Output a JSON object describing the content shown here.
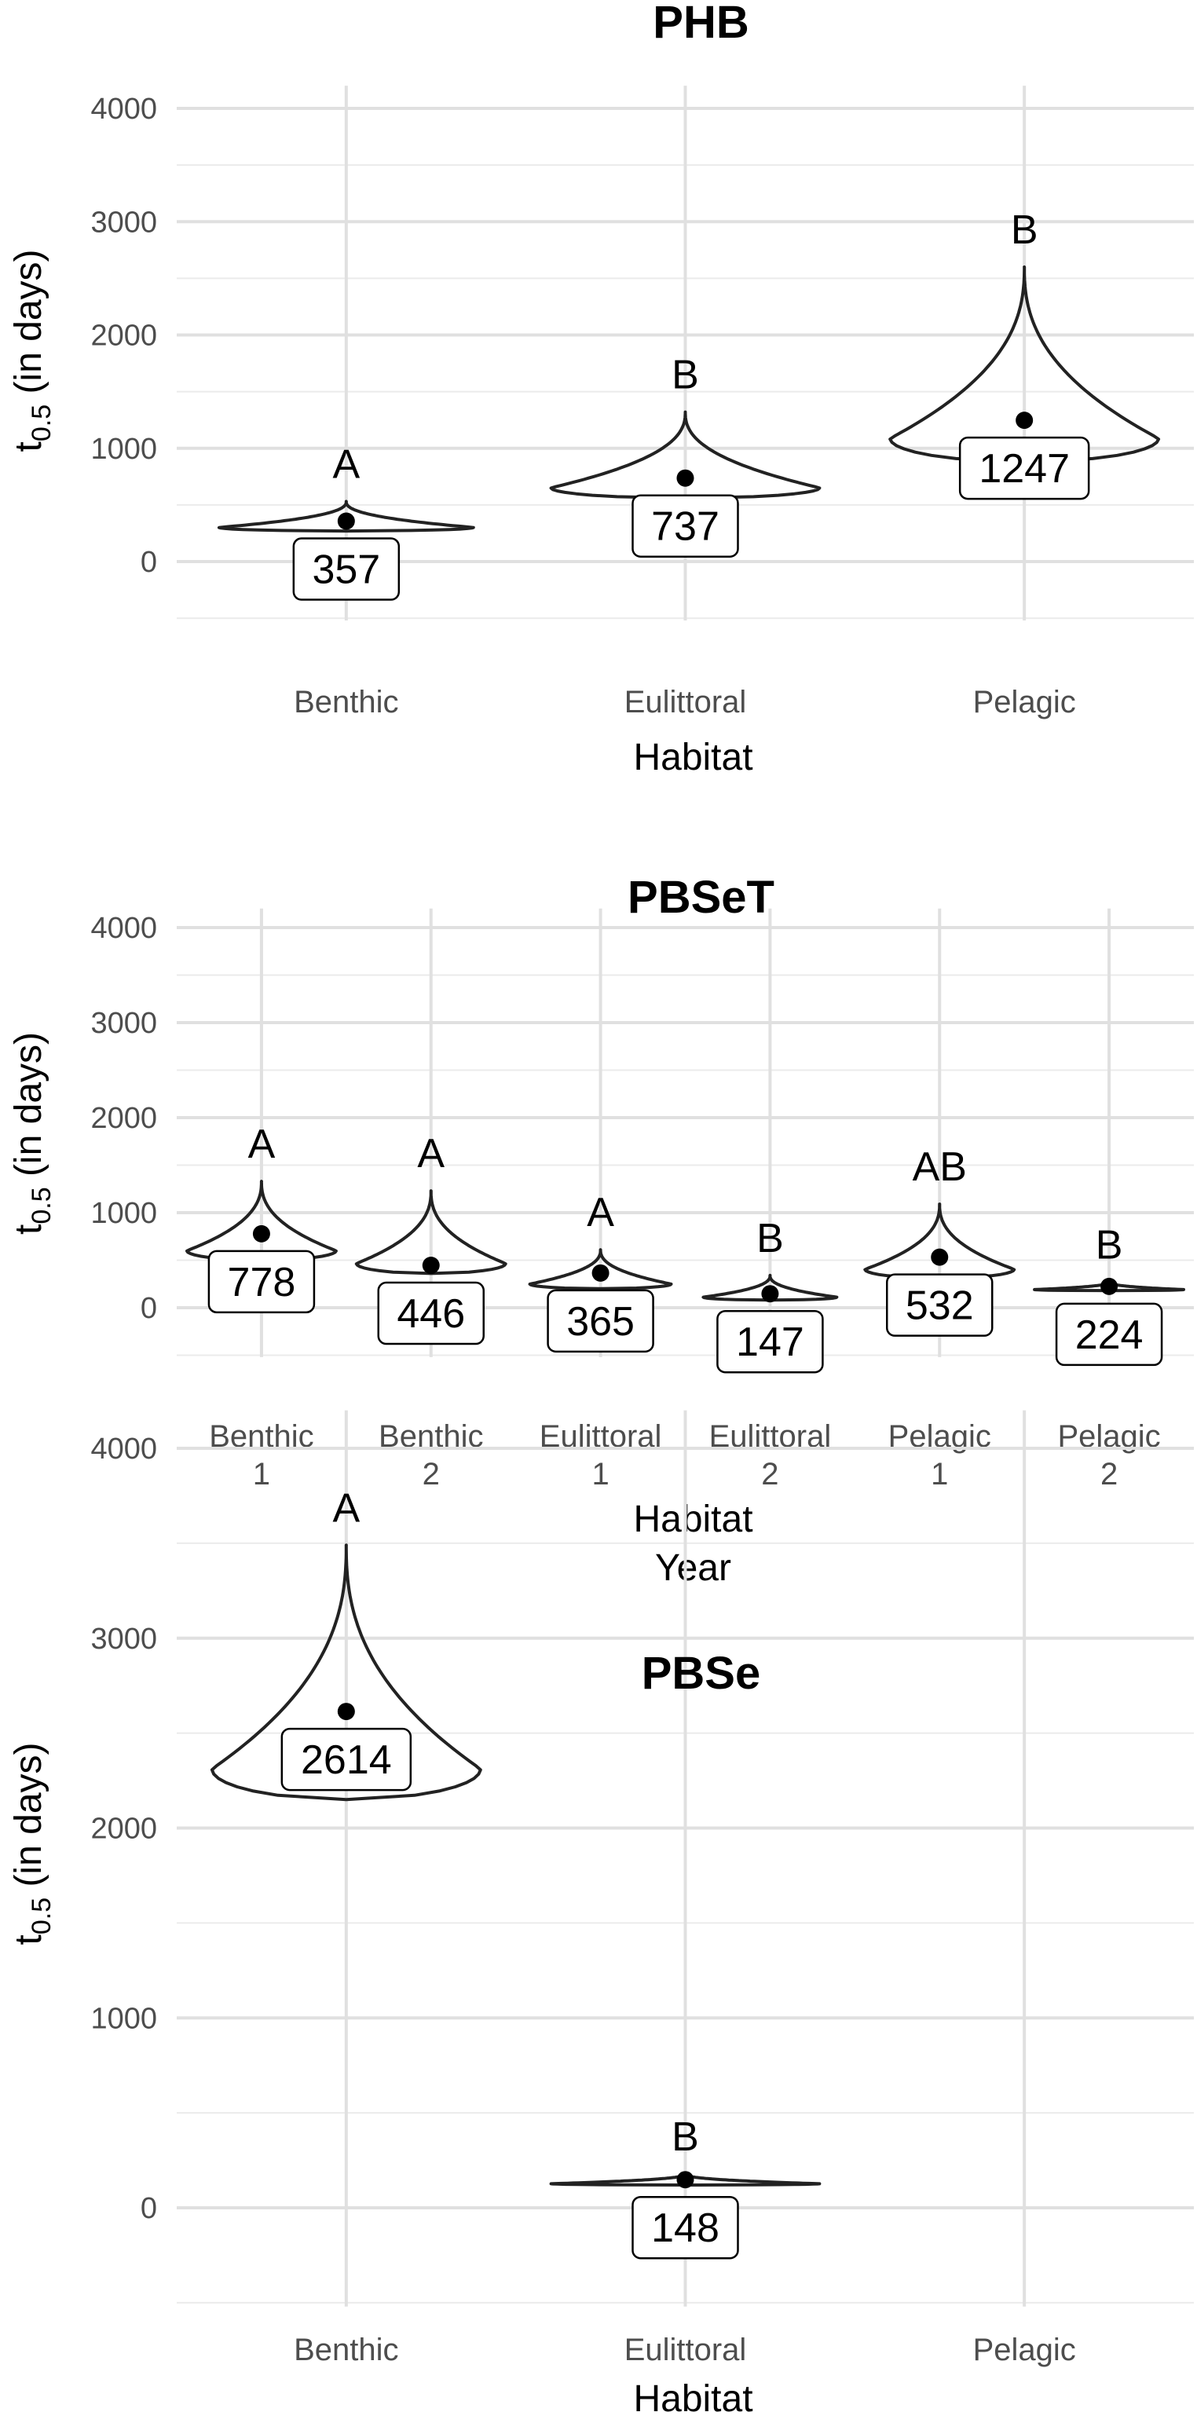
{
  "chart_data": [
    {
      "type": "violin",
      "title": "PHB",
      "xlabel": [
        "Habitat"
      ],
      "ylabel": "t0.5 (in days)",
      "ylim": [
        -520,
        4200
      ],
      "yticks": [
        0,
        1000,
        2000,
        3000,
        4000
      ],
      "categories": [
        {
          "label": [
            "Benthic"
          ],
          "value": 357,
          "letter": "A",
          "vmin": 270,
          "vmax": 530,
          "spread": 0.9
        },
        {
          "label": [
            "Eulittoral"
          ],
          "value": 737,
          "letter": "B",
          "vmin": 560,
          "vmax": 1320,
          "spread": 0.95
        },
        {
          "label": [
            "Pelagic"
          ],
          "value": 1247,
          "letter": "B",
          "vmin": 880,
          "vmax": 2600,
          "spread": 0.95
        }
      ]
    },
    {
      "type": "violin",
      "title": "PBSeT",
      "xlabel": [
        "Habitat",
        "Year"
      ],
      "ylabel": "t0.5 (in days)",
      "ylim": [
        -520,
        4200
      ],
      "yticks": [
        0,
        1000,
        2000,
        3000,
        4000
      ],
      "categories": [
        {
          "label": [
            "Benthic",
            "1"
          ],
          "value": 778,
          "letter": "A",
          "vmin": 500,
          "vmax": 1330,
          "spread": 0.95
        },
        {
          "label": [
            "Benthic",
            "2"
          ],
          "value": 446,
          "letter": "A",
          "vmin": 360,
          "vmax": 1230,
          "spread": 0.95
        },
        {
          "label": [
            "Eulittoral",
            "1"
          ],
          "value": 365,
          "letter": "A",
          "vmin": 200,
          "vmax": 610,
          "spread": 0.9
        },
        {
          "label": [
            "Eulittoral",
            "2"
          ],
          "value": 147,
          "letter": "B",
          "vmin": 80,
          "vmax": 340,
          "spread": 0.85
        },
        {
          "label": [
            "Pelagic",
            "1"
          ],
          "value": 532,
          "letter": "AB",
          "vmin": 310,
          "vmax": 1090,
          "spread": 0.95
        },
        {
          "label": [
            "Pelagic",
            "2"
          ],
          "value": 224,
          "letter": "B",
          "vmin": 180,
          "vmax": 270,
          "spread": 0.95
        }
      ]
    },
    {
      "type": "violin",
      "title": "PBSe",
      "xlabel": [
        "Habitat"
      ],
      "ylabel": "t0.5 (in days)",
      "ylim": [
        -520,
        4200
      ],
      "yticks": [
        0,
        1000,
        2000,
        3000,
        4000
      ],
      "categories": [
        {
          "label": [
            "Benthic"
          ],
          "value": 2614,
          "letter": "A",
          "vmin": 2150,
          "vmax": 3490,
          "spread": 0.95
        },
        {
          "label": [
            "Eulittoral"
          ],
          "value": 148,
          "letter": "B",
          "vmin": 120,
          "vmax": 178,
          "spread": 0.95
        },
        {
          "label": [
            "Pelagic"
          ],
          "value": null,
          "letter": "",
          "vmin": null,
          "vmax": null,
          "spread": 0
        }
      ]
    }
  ]
}
